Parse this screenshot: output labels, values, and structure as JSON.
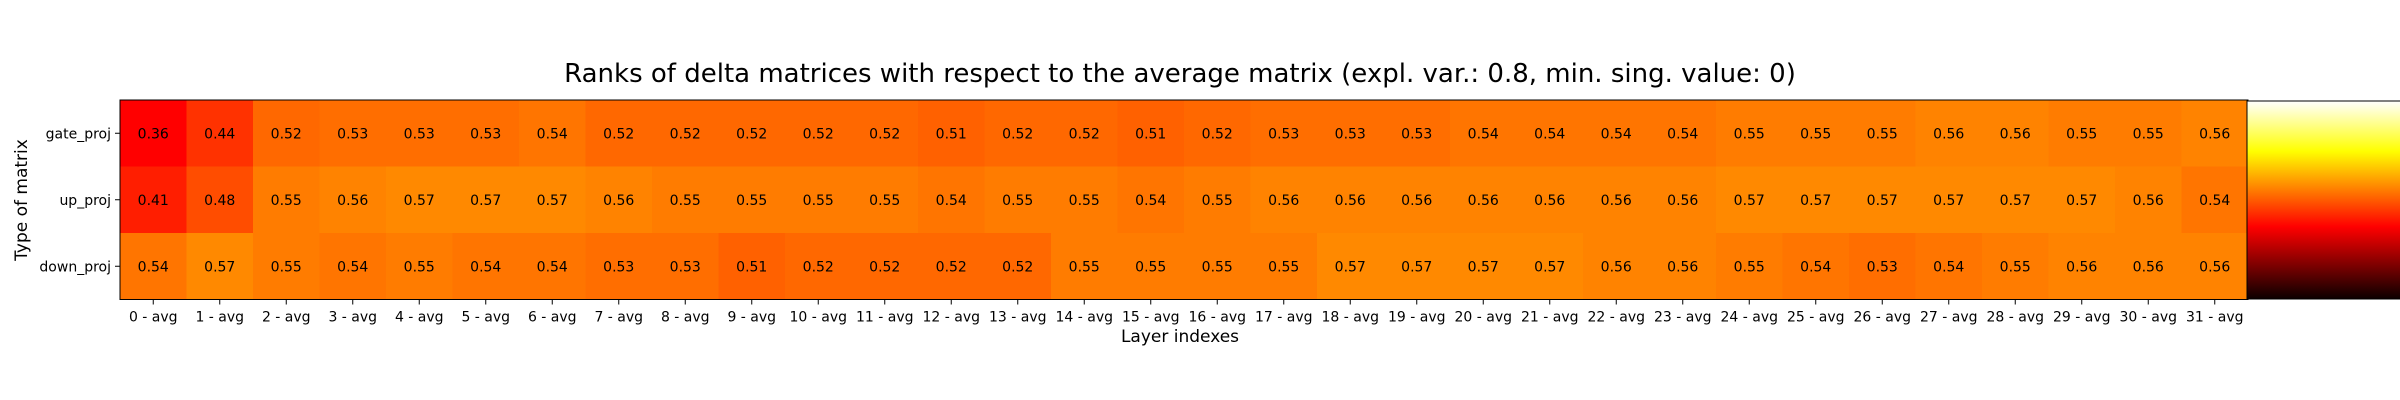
{
  "chart_data": {
    "type": "heatmap",
    "title": "Ranks of delta matrices with respect to the average matrix (expl. var.: 0.8, min. sing. value: 0)",
    "xlabel": "Layer indexes",
    "ylabel": "Type of matrix",
    "x_categories": [
      "0 - avg",
      "1 - avg",
      "2 - avg",
      "3 - avg",
      "4 - avg",
      "5 - avg",
      "6 - avg",
      "7 - avg",
      "8 - avg",
      "9 - avg",
      "10 - avg",
      "11 - avg",
      "12 - avg",
      "13 - avg",
      "14 - avg",
      "15 - avg",
      "16 - avg",
      "17 - avg",
      "18 - avg",
      "19 - avg",
      "20 - avg",
      "21 - avg",
      "22 - avg",
      "23 - avg",
      "24 - avg",
      "25 - avg",
      "26 - avg",
      "27 - avg",
      "28 - avg",
      "29 - avg",
      "30 - avg",
      "31 - avg"
    ],
    "y_categories": [
      "gate_proj",
      "up_proj",
      "down_proj"
    ],
    "values": [
      [
        0.36,
        0.44,
        0.52,
        0.53,
        0.53,
        0.53,
        0.54,
        0.52,
        0.52,
        0.52,
        0.52,
        0.52,
        0.51,
        0.52,
        0.52,
        0.51,
        0.52,
        0.53,
        0.53,
        0.53,
        0.54,
        0.54,
        0.54,
        0.54,
        0.55,
        0.55,
        0.55,
        0.56,
        0.56,
        0.55,
        0.55,
        0.56
      ],
      [
        0.41,
        0.48,
        0.55,
        0.56,
        0.57,
        0.57,
        0.57,
        0.56,
        0.55,
        0.55,
        0.55,
        0.55,
        0.54,
        0.55,
        0.55,
        0.54,
        0.55,
        0.56,
        0.56,
        0.56,
        0.56,
        0.56,
        0.56,
        0.56,
        0.57,
        0.57,
        0.57,
        0.57,
        0.57,
        0.57,
        0.56,
        0.54
      ],
      [
        0.54,
        0.57,
        0.55,
        0.54,
        0.55,
        0.54,
        0.54,
        0.53,
        0.53,
        0.51,
        0.52,
        0.52,
        0.52,
        0.52,
        0.55,
        0.55,
        0.55,
        0.55,
        0.57,
        0.57,
        0.57,
        0.57,
        0.56,
        0.56,
        0.55,
        0.54,
        0.53,
        0.54,
        0.55,
        0.56,
        0.56,
        0.56
      ]
    ],
    "colormap": "hot",
    "vmin": 0.0,
    "vmax": 1.0,
    "colorbar_ticks": [
      "0.0",
      "0.2",
      "0.4",
      "0.6",
      "0.8",
      "1.0"
    ]
  }
}
